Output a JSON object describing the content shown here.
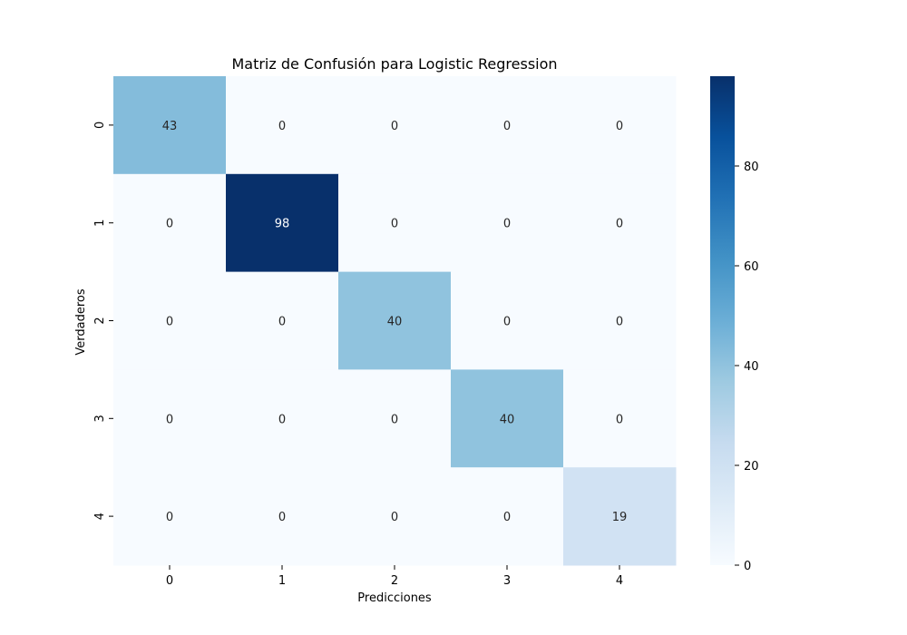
{
  "chart_data": {
    "type": "heatmap",
    "title": "Matriz de Confusión para Logistic Regression",
    "xlabel": "Predicciones",
    "ylabel": "Verdaderos",
    "x_categories": [
      "0",
      "1",
      "2",
      "3",
      "4"
    ],
    "y_categories": [
      "0",
      "1",
      "2",
      "3",
      "4"
    ],
    "matrix": [
      [
        43,
        0,
        0,
        0,
        0
      ],
      [
        0,
        98,
        0,
        0,
        0
      ],
      [
        0,
        0,
        40,
        0,
        0
      ],
      [
        0,
        0,
        0,
        40,
        0
      ],
      [
        0,
        0,
        0,
        0,
        19
      ]
    ],
    "colormap": "Blues",
    "colorbar": {
      "min": 0,
      "max": 98,
      "ticks": [
        0,
        20,
        40,
        60,
        80
      ]
    }
  }
}
